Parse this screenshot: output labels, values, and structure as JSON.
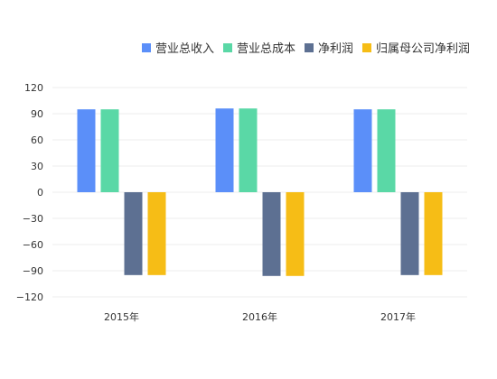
{
  "chart_data": {
    "type": "bar",
    "categories": [
      "2015年",
      "2016年",
      "2017年"
    ],
    "series": [
      {
        "name": "营业总收入",
        "color": "#5B8FF9",
        "values": [
          95,
          96,
          95
        ]
      },
      {
        "name": "营业总成本",
        "color": "#5AD8A6",
        "values": [
          95,
          96,
          95
        ]
      },
      {
        "name": "净利润",
        "color": "#5D7092",
        "values": [
          -95,
          -96,
          -95
        ]
      },
      {
        "name": "归属母公司净利润",
        "color": "#F6BD16",
        "values": [
          -95,
          -96,
          -95
        ]
      }
    ],
    "yticks": [
      "120",
      "90",
      "60",
      "30",
      "0",
      "−30",
      "−60",
      "−90",
      "−120"
    ],
    "ylim": [
      -120,
      120
    ],
    "legend_position": "top-right",
    "grid": true
  }
}
